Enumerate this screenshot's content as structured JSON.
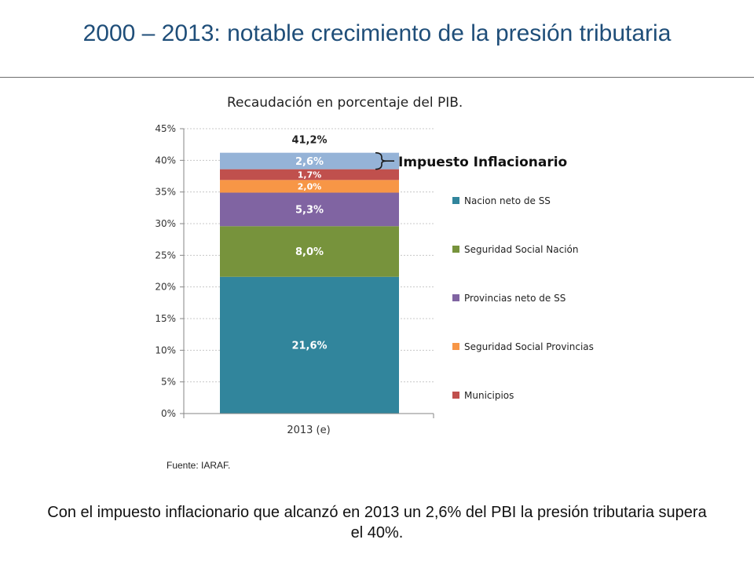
{
  "slide": {
    "title": "2000 – 2013: notable crecimiento de la presión tributaria",
    "source": "Fuente: IARAF.",
    "footer": "Con el impuesto inflacionario que alcanzó en 2013 un 2,6% del PBI la presión tributaria supera el 40%."
  },
  "chart_data": {
    "type": "bar",
    "stacked": true,
    "title": "Recaudación en porcentaje del PIB.",
    "categories": [
      "2013 (e)"
    ],
    "ylim": [
      0,
      45
    ],
    "yticks": [
      "0%",
      "5%",
      "10%",
      "15%",
      "20%",
      "25%",
      "30%",
      "35%",
      "40%",
      "45%"
    ],
    "grid": true,
    "legend_position": "right",
    "series": [
      {
        "name": "Nacion neto de SS",
        "values": [
          21.6
        ],
        "label": "21,6%",
        "color": "#31859c",
        "label_color": "#ffffff"
      },
      {
        "name": "Seguridad Social Nación",
        "values": [
          8.0
        ],
        "label": "8,0%",
        "color": "#77933c",
        "label_color": "#ffffff"
      },
      {
        "name": "Provincias neto de SS",
        "values": [
          5.3
        ],
        "label": "5,3%",
        "color": "#8064a2",
        "label_color": "#ffffff"
      },
      {
        "name": "Seguridad Social Provincias",
        "values": [
          2.0
        ],
        "label": "2,0%",
        "color": "#f79646",
        "label_color": "#ffffff"
      },
      {
        "name": "Municipios",
        "values": [
          1.7
        ],
        "label": "1,7%",
        "color": "#c0504d",
        "label_color": "#ffffff"
      },
      {
        "name": "",
        "values": [
          2.6
        ],
        "label": "2,6%",
        "color": "#95b3d7",
        "label_color": "#ffffff"
      }
    ],
    "total_label": "41,2%",
    "annotation": "Impuesto Inflacionario",
    "axis_color": "#868686",
    "grid_color": "#c8c8c8"
  }
}
